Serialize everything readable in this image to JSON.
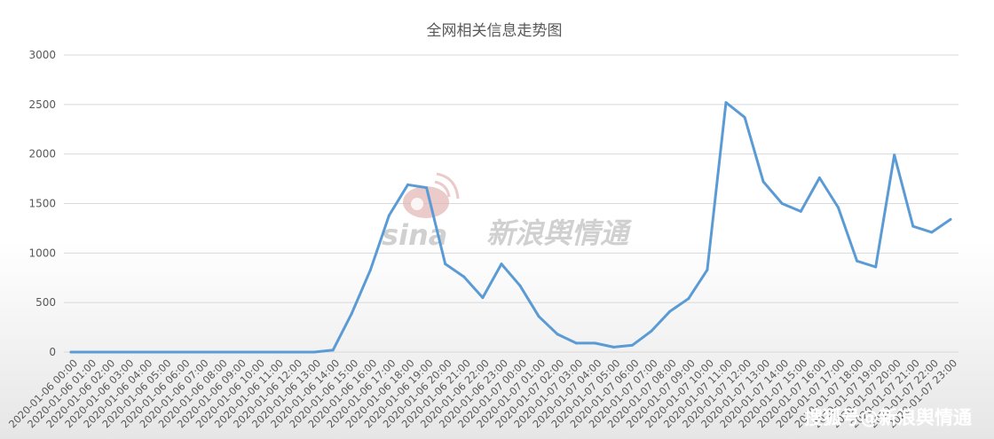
{
  "chart_data": {
    "type": "line",
    "title": "全网相关信息走势图",
    "xlabel": "",
    "ylabel": "",
    "ylim": [
      0,
      3000
    ],
    "yticks": [
      0,
      500,
      1000,
      1500,
      2000,
      2500,
      3000
    ],
    "grid": true,
    "legend": "none",
    "categories": [
      "2020-01-06 00:00",
      "2020-01-06 01:00",
      "2020-01-06 02:00",
      "2020-01-06 03:00",
      "2020-01-06 04:00",
      "2020-01-06 05:00",
      "2020-01-06 06:00",
      "2020-01-06 07:00",
      "2020-01-06 08:00",
      "2020-01-06 09:00",
      "2020-01-06 10:00",
      "2020-01-06 11:00",
      "2020-01-06 12:00",
      "2020-01-06 13:00",
      "2020-01-06 14:00",
      "2020-01-06 15:00",
      "2020-01-06 16:00",
      "2020-01-06 17:00",
      "2020-01-06 18:00",
      "2020-01-06 19:00",
      "2020-01-06 20:00",
      "2020-01-06 21:00",
      "2020-01-06 22:00",
      "2020-01-06 23:00",
      "2020-01-07 00:00",
      "2020-01-07 01:00",
      "2020-01-07 02:00",
      "2020-01-07 03:00",
      "2020-01-07 04:00",
      "2020-01-07 05:00",
      "2020-01-07 06:00",
      "2020-01-07 07:00",
      "2020-01-07 08:00",
      "2020-01-07 09:00",
      "2020-01-07 10:00",
      "2020-01-07 11:00",
      "2020-01-07 12:00",
      "2020-01-07 13:00",
      "2020-01-07 14:00",
      "2020-01-07 15:00",
      "2020-01-07 16:00",
      "2020-01-07 17:00",
      "2020-01-07 18:00",
      "2020-01-07 19:00",
      "2020-01-07 20:00",
      "2020-01-07 21:00",
      "2020-01-07 22:00",
      "2020-01-07 23:00"
    ],
    "series": [
      {
        "values": [
          0,
          0,
          0,
          0,
          0,
          0,
          0,
          0,
          0,
          0,
          0,
          0,
          0,
          0,
          20,
          390,
          830,
          1380,
          1690,
          1660,
          890,
          760,
          550,
          890,
          670,
          360,
          180,
          90,
          90,
          50,
          70,
          210,
          410,
          540,
          830,
          2520,
          2370,
          1720,
          1500,
          1420,
          1760,
          1460,
          920,
          860,
          1990,
          1270,
          1210,
          1340
        ]
      }
    ],
    "colors": {
      "series": "#5b9bd5",
      "grid": "#d9d9d9",
      "text": "#595959"
    }
  },
  "watermark": {
    "text": "新浪舆情通",
    "logo": "sina"
  },
  "credit": "搜狐号@新浪舆情通"
}
